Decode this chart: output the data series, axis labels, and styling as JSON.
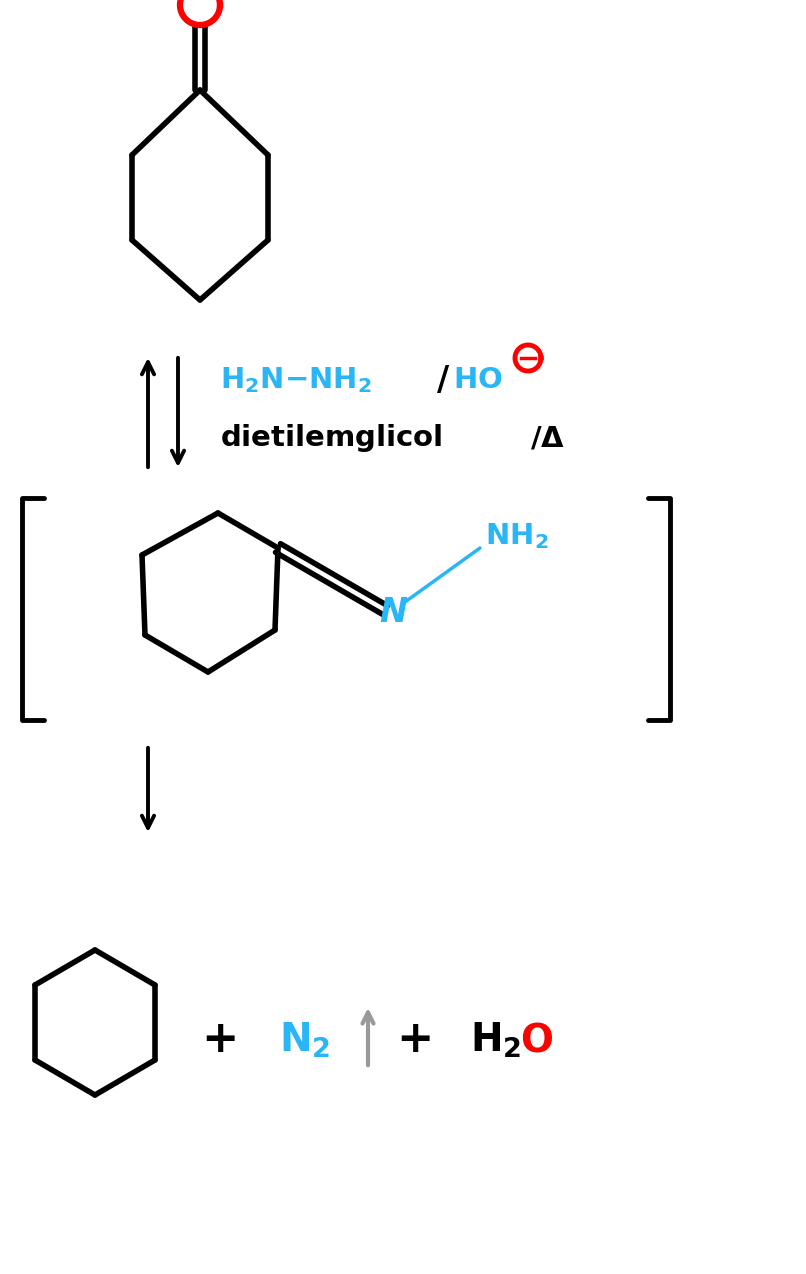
{
  "bg_color": "#ffffff",
  "black": "#000000",
  "red": "#ff0000",
  "cyan": "#29b6f6",
  "gray": "#999999",
  "figsize": [
    8.06,
    12.74
  ],
  "dpi": 100
}
